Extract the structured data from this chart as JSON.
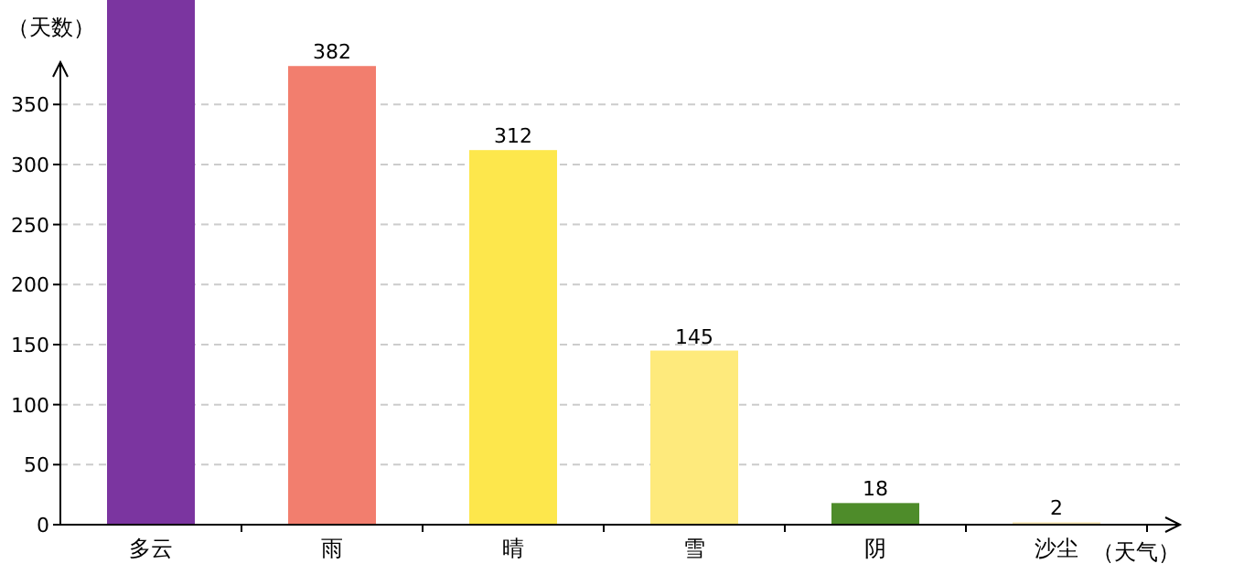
{
  "chart_data": {
    "type": "bar",
    "xlabel": "（天气）",
    "ylabel": "（天数）",
    "categories": [
      "多云",
      "雨",
      "晴",
      "雪",
      "阴",
      "沙尘"
    ],
    "values": [
      437,
      382,
      312,
      145,
      18,
      2
    ],
    "value_labels": [
      null,
      "382",
      "312",
      "145",
      "18",
      "2"
    ],
    "colors": [
      "#7b35a0",
      "#f27e6e",
      "#fde74c",
      "#feea7c",
      "#4e8c2a",
      "#f3e2b0"
    ],
    "ylim": [
      0,
      437
    ],
    "yticks": [
      0,
      50,
      100,
      150,
      200,
      250,
      300,
      350
    ],
    "grid": "y"
  }
}
